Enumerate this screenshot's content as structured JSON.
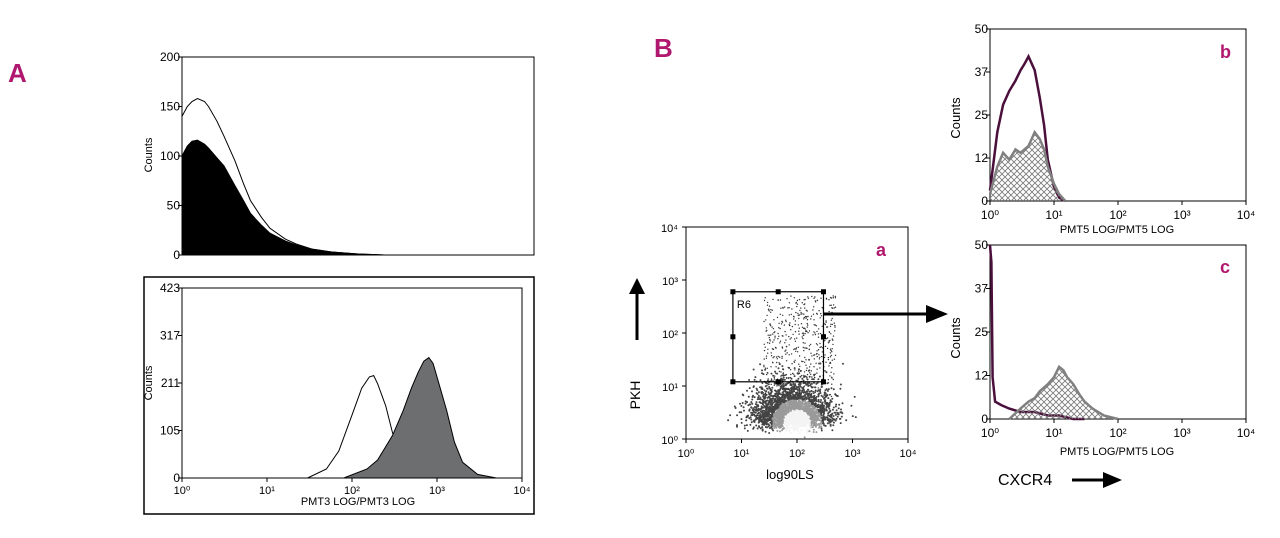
{
  "labels": {
    "A": "A",
    "B": "B"
  },
  "colors": {
    "accent": "#b0176e",
    "dark_trace": "#4a0f3b",
    "gray_trace": "#808080",
    "filled_gray": "#6d6e70"
  },
  "chart_data": [
    {
      "id": "A-top",
      "type": "area",
      "ylabel": "Counts",
      "xlabel": "",
      "xscale": "log",
      "xlim": [
        1,
        10000
      ],
      "ylim": [
        0,
        200
      ],
      "yticks": [
        "0",
        "50",
        "100",
        "150",
        "200"
      ],
      "series": [
        {
          "style": "filled-black",
          "x": [
            1,
            1.15,
            1.3,
            1.5,
            1.8,
            2,
            2.5,
            3,
            4,
            5,
            6,
            8,
            10,
            15,
            20,
            30,
            50,
            100,
            200
          ],
          "y": [
            100,
            110,
            115,
            116,
            112,
            108,
            98,
            90,
            70,
            55,
            42,
            30,
            22,
            14,
            10,
            6,
            3,
            1,
            0
          ]
        },
        {
          "style": "outline",
          "x": [
            1,
            1.15,
            1.3,
            1.5,
            1.8,
            2,
            2.5,
            3,
            4,
            5,
            6,
            8,
            10,
            15,
            20,
            30,
            50,
            100,
            200
          ],
          "y": [
            140,
            150,
            155,
            158,
            155,
            150,
            135,
            120,
            95,
            72,
            55,
            38,
            27,
            16,
            11,
            6,
            3,
            1,
            0
          ]
        }
      ]
    },
    {
      "id": "A-bottom",
      "type": "area",
      "ylabel": "Counts",
      "xlabel": "PMT3 LOG/PMT3 LOG",
      "xscale": "log",
      "xlim": [
        1,
        10000
      ],
      "ylim": [
        0,
        423
      ],
      "yticks": [
        "0",
        "105",
        "211",
        "317",
        "423"
      ],
      "xticks": [
        "10⁰",
        "10¹",
        "10²",
        "10³",
        "10⁴"
      ],
      "series": [
        {
          "style": "outline",
          "x": [
            30,
            50,
            70,
            100,
            130,
            160,
            180,
            200,
            250,
            300,
            400,
            500,
            700,
            1000
          ],
          "y": [
            0,
            20,
            60,
            140,
            200,
            225,
            228,
            210,
            160,
            100,
            50,
            20,
            5,
            0
          ]
        },
        {
          "style": "filled-gray",
          "x": [
            80,
            150,
            200,
            300,
            400,
            500,
            600,
            700,
            800,
            900,
            1000,
            1300,
            1600,
            2000,
            3000,
            5000
          ],
          "y": [
            0,
            20,
            40,
            95,
            150,
            200,
            235,
            260,
            268,
            255,
            225,
            150,
            80,
            35,
            8,
            0
          ]
        }
      ]
    },
    {
      "id": "B-a",
      "type": "scatter",
      "panel_label": "a",
      "xlabel": "log90LS",
      "ylabel": "PKH",
      "xscale": "log",
      "yscale": "log",
      "xlim": [
        1,
        10000
      ],
      "ylim": [
        1,
        10000
      ],
      "xticks": [
        "10⁰",
        "10¹",
        "10²",
        "10³",
        "10⁴"
      ],
      "yticks": [
        "10⁰",
        "10¹",
        "10²",
        "10³",
        "10⁴"
      ],
      "gate": {
        "name": "R6",
        "x": [
          7,
          300
        ],
        "y": [
          12,
          600
        ]
      }
    },
    {
      "id": "B-b",
      "type": "line",
      "panel_label": "b",
      "ylabel": "Counts",
      "xlabel": "PMT5 LOG/PMT5 LOG",
      "xscale": "log",
      "xlim": [
        1,
        10000
      ],
      "ylim": [
        0,
        50
      ],
      "yticks": [
        "0",
        "12",
        "25",
        "37",
        "50"
      ],
      "xticks": [
        "10⁰",
        "10¹",
        "10²",
        "10³",
        "10⁴"
      ],
      "series": [
        {
          "style": "dark",
          "x": [
            1,
            1.3,
            1.6,
            2,
            2.5,
            3,
            3.5,
            4,
            5,
            6,
            7,
            8,
            10,
            12,
            15
          ],
          "y": [
            3,
            20,
            28,
            32,
            35,
            38,
            40,
            42,
            38,
            30,
            22,
            12,
            4,
            1,
            0
          ]
        },
        {
          "style": "gray-hatched",
          "x": [
            1,
            1.3,
            1.6,
            2,
            2.5,
            3,
            4,
            5,
            6,
            7,
            8,
            10,
            12,
            15
          ],
          "y": [
            2,
            10,
            14,
            12,
            15,
            14,
            16,
            20,
            18,
            15,
            10,
            5,
            2,
            0
          ]
        }
      ]
    },
    {
      "id": "B-c",
      "type": "line",
      "panel_label": "c",
      "ylabel": "Counts",
      "xlabel": "PMT5 LOG/PMT5 LOG",
      "xscale": "log",
      "xlim": [
        1,
        10000
      ],
      "ylim": [
        0,
        50
      ],
      "yticks": [
        "0",
        "12",
        "25",
        "37",
        "50"
      ],
      "xticks": [
        "10⁰",
        "10¹",
        "10²",
        "10³",
        "10⁴"
      ],
      "series": [
        {
          "style": "dark",
          "x": [
            1,
            1.05,
            1.1,
            1.2,
            1.5,
            2,
            3,
            5,
            8,
            12,
            20,
            30
          ],
          "y": [
            50,
            45,
            12,
            5,
            4,
            3,
            2,
            2,
            1,
            1,
            0,
            0
          ]
        },
        {
          "style": "gray-hatched",
          "x": [
            2,
            3,
            4,
            5,
            6,
            8,
            10,
            12,
            14,
            16,
            20,
            25,
            30,
            40,
            60,
            100
          ],
          "y": [
            0,
            3,
            5,
            6,
            8,
            10,
            12,
            15,
            14,
            12,
            10,
            7,
            5,
            3,
            1,
            0
          ]
        }
      ]
    }
  ],
  "cxcr4_label": "CXCR4"
}
